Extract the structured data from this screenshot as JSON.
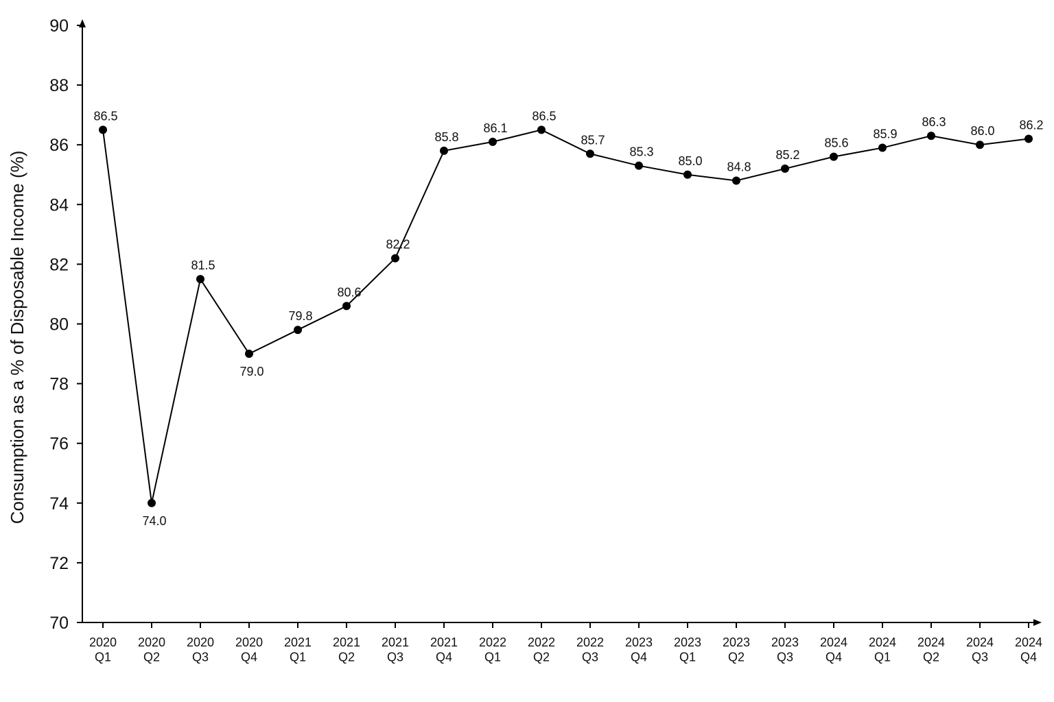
{
  "chart_data": {
    "type": "line",
    "y_label": "Consumption as a % of Disposable Income (%)",
    "categories": [
      "2020\nQ1",
      "2020\nQ2",
      "2020\nQ3",
      "2020\nQ4",
      "2021\nQ1",
      "2021\nQ2",
      "2021\nQ3",
      "2021\nQ4",
      "2022\nQ1",
      "2022\nQ2",
      "2022\nQ3",
      "2023\nQ4",
      "2023\nQ1",
      "2023\nQ2",
      "2023\nQ3",
      "2024\nQ4",
      "2024\nQ1",
      "2024\nQ2",
      "2024\nQ3",
      "2024\nQ4"
    ],
    "values": [
      86.5,
      74.0,
      81.5,
      79.0,
      79.8,
      80.6,
      82.2,
      85.8,
      86.1,
      86.5,
      85.7,
      85.3,
      85.0,
      84.8,
      85.2,
      85.6,
      85.9,
      86.3,
      86.0,
      86.2
    ],
    "value_labels": [
      "86.5",
      "74.0",
      "81.5",
      "79.0",
      "79.8",
      "80.6",
      "82.2",
      "85.8",
      "86.1",
      "86.5",
      "85.7",
      "85.3",
      "85.0",
      "84.8",
      "85.2",
      "85.6",
      "85.9",
      "86.3",
      "86.0",
      "86.2"
    ],
    "color": "#000000",
    "ylim": [
      70,
      90
    ],
    "yticks": [
      70,
      72,
      74,
      76,
      78,
      80,
      82,
      84,
      86,
      88,
      90
    ],
    "grid": false
  }
}
